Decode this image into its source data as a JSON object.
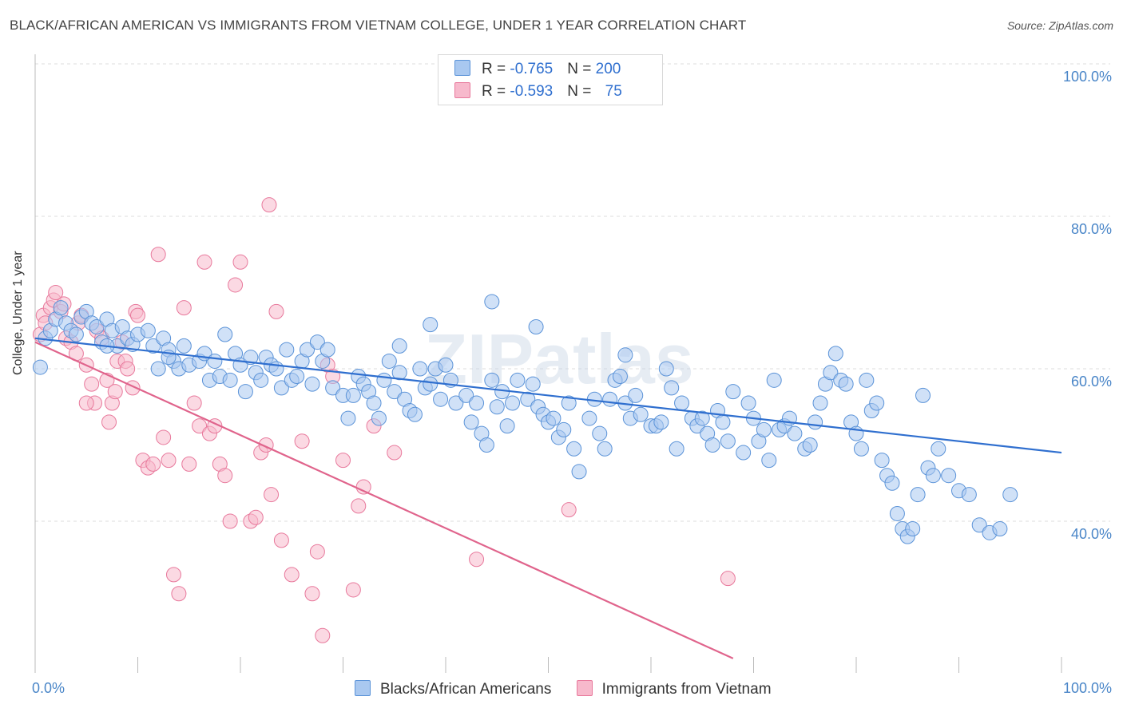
{
  "header": {
    "title": "BLACK/AFRICAN AMERICAN VS IMMIGRANTS FROM VIETNAM COLLEGE, UNDER 1 YEAR CORRELATION CHART",
    "source": "Source: ZipAtlas.com"
  },
  "watermark": "ZIPatlas",
  "legend": {
    "rows": [
      {
        "r_label": "R = ",
        "r_value": "-0.765",
        "n_label": "N = ",
        "n_value": "200"
      },
      {
        "r_label": "R = ",
        "r_value": "-0.593",
        "n_label": "N = ",
        "n_value": "75"
      }
    ],
    "bottom": [
      "Blacks/African Americans",
      "Immigrants from Vietnam"
    ]
  },
  "axes": {
    "ylabel": "College, Under 1 year",
    "yticks": [
      "100.0%",
      "80.0%",
      "60.0%",
      "40.0%"
    ],
    "xticks": [
      "0.0%",
      "100.0%"
    ]
  },
  "colors": {
    "blue_fill": "#a9c8f0",
    "blue_stroke": "#5b93d8",
    "blue_line": "#2f6fcf",
    "pink_fill": "#f7b9cc",
    "pink_stroke": "#e8799c",
    "pink_line": "#e0648c",
    "grid": "#dddddd",
    "tick_text": "#4a86c8"
  },
  "chart_data": {
    "type": "scatter",
    "title": "BLACK/AFRICAN AMERICAN VS IMMIGRANTS FROM VIETNAM COLLEGE, UNDER 1 YEAR CORRELATION CHART",
    "xlabel": "",
    "ylabel": "College, Under 1 year",
    "xlim": [
      0,
      100
    ],
    "ylim": [
      20,
      102
    ],
    "grid": true,
    "legend_placement": "top-center",
    "series": [
      {
        "name": "Blacks/African Americans",
        "r": -0.765,
        "n": 200,
        "trend": [
          [
            0,
            64.0
          ],
          [
            100,
            49.0
          ]
        ],
        "points": [
          [
            0.5,
            60.2
          ],
          [
            1,
            64
          ],
          [
            1.5,
            65
          ],
          [
            2,
            66.5
          ],
          [
            2.5,
            68
          ],
          [
            3,
            66
          ],
          [
            3.5,
            65
          ],
          [
            4,
            64.5
          ],
          [
            4.5,
            66.8
          ],
          [
            5,
            67.5
          ],
          [
            5.5,
            66
          ],
          [
            6,
            65.5
          ],
          [
            6.5,
            63.5
          ],
          [
            7,
            66.5
          ],
          [
            7.5,
            65
          ],
          [
            8,
            63
          ],
          [
            8.5,
            65.5
          ],
          [
            9,
            64
          ],
          [
            9.5,
            63.2
          ],
          [
            10,
            64.5
          ],
          [
            11,
            65
          ],
          [
            11.5,
            63
          ],
          [
            12,
            60
          ],
          [
            12.5,
            64
          ],
          [
            13,
            62.5
          ],
          [
            13.5,
            61
          ],
          [
            14,
            60
          ],
          [
            14.5,
            63
          ],
          [
            15,
            60.5
          ],
          [
            16,
            61
          ],
          [
            16.5,
            62
          ],
          [
            17,
            58.5
          ],
          [
            17.5,
            61
          ],
          [
            18,
            59
          ],
          [
            18.5,
            64.5
          ],
          [
            19,
            58.5
          ],
          [
            19.5,
            62
          ],
          [
            20,
            60.5
          ],
          [
            20.5,
            57
          ],
          [
            21,
            61.5
          ],
          [
            21.5,
            59.5
          ],
          [
            22,
            58.5
          ],
          [
            22.5,
            61.5
          ],
          [
            23,
            60.5
          ],
          [
            23.5,
            60
          ],
          [
            24,
            57.5
          ],
          [
            24.5,
            62.5
          ],
          [
            25,
            58.5
          ],
          [
            25.5,
            59
          ],
          [
            26,
            61
          ],
          [
            26.5,
            62.5
          ],
          [
            27,
            58
          ],
          [
            27.5,
            63.5
          ],
          [
            28,
            61
          ],
          [
            28.5,
            62.5
          ],
          [
            29,
            57.5
          ],
          [
            30,
            56.5
          ],
          [
            30.5,
            53.5
          ],
          [
            31,
            56.5
          ],
          [
            31.5,
            59
          ],
          [
            32,
            58
          ],
          [
            32.5,
            57
          ],
          [
            33,
            55.5
          ],
          [
            34,
            58.5
          ],
          [
            34.5,
            61
          ],
          [
            35,
            57
          ],
          [
            35.5,
            59.5
          ],
          [
            36,
            56
          ],
          [
            36.5,
            54.5
          ],
          [
            37,
            54
          ],
          [
            37.5,
            60
          ],
          [
            38,
            57.5
          ],
          [
            38.5,
            58
          ],
          [
            39,
            60
          ],
          [
            39.5,
            56
          ],
          [
            40,
            60.5
          ],
          [
            40.5,
            58.5
          ],
          [
            41,
            55.5
          ],
          [
            42,
            56.5
          ],
          [
            42.5,
            53
          ],
          [
            43,
            55.5
          ],
          [
            43.5,
            51.5
          ],
          [
            44,
            50
          ],
          [
            44.5,
            58.5
          ],
          [
            45,
            55
          ],
          [
            45.5,
            57
          ],
          [
            46,
            52.5
          ],
          [
            46.5,
            55.5
          ],
          [
            47,
            58.5
          ],
          [
            48,
            56
          ],
          [
            48.5,
            58
          ],
          [
            49,
            55
          ],
          [
            49.5,
            54
          ],
          [
            50,
            53
          ],
          [
            50.5,
            53.5
          ],
          [
            51,
            51
          ],
          [
            51.5,
            52
          ],
          [
            52,
            55.5
          ],
          [
            52.5,
            49.5
          ],
          [
            53,
            46.5
          ],
          [
            54,
            53.5
          ],
          [
            54.5,
            56
          ],
          [
            55,
            51.5
          ],
          [
            55.5,
            49.5
          ],
          [
            56,
            56
          ],
          [
            56.5,
            58.5
          ],
          [
            57,
            59
          ],
          [
            57.5,
            55.5
          ],
          [
            58,
            53.5
          ],
          [
            58.5,
            56.5
          ],
          [
            59,
            54
          ],
          [
            60,
            52.5
          ],
          [
            60.5,
            52.5
          ],
          [
            61,
            53
          ],
          [
            61.5,
            60
          ],
          [
            62,
            57.5
          ],
          [
            62.5,
            49.5
          ],
          [
            63,
            55.5
          ],
          [
            64,
            53.5
          ],
          [
            64.5,
            52.5
          ],
          [
            65,
            53.5
          ],
          [
            65.5,
            51.5
          ],
          [
            66,
            50
          ],
          [
            66.5,
            54.5
          ],
          [
            67,
            53
          ],
          [
            67.5,
            50.5
          ],
          [
            68,
            57
          ],
          [
            69,
            49
          ],
          [
            69.5,
            55.5
          ],
          [
            70,
            53.5
          ],
          [
            70.5,
            50.5
          ],
          [
            71,
            52
          ],
          [
            71.5,
            48
          ],
          [
            72,
            58.5
          ],
          [
            72.5,
            52
          ],
          [
            73,
            52.5
          ],
          [
            73.5,
            53.5
          ],
          [
            74,
            51.5
          ],
          [
            75,
            49.5
          ],
          [
            75.5,
            50
          ],
          [
            76,
            53
          ],
          [
            76.5,
            55.5
          ],
          [
            77,
            58
          ],
          [
            77.5,
            59.5
          ],
          [
            78,
            62
          ],
          [
            78.5,
            58.5
          ],
          [
            79,
            58
          ],
          [
            79.5,
            53
          ],
          [
            80,
            51.5
          ],
          [
            80.5,
            49.5
          ],
          [
            81,
            58.5
          ],
          [
            81.5,
            54.5
          ],
          [
            82,
            55.5
          ],
          [
            82.5,
            48
          ],
          [
            83,
            46
          ],
          [
            83.5,
            45
          ],
          [
            84,
            41
          ],
          [
            84.5,
            39
          ],
          [
            85,
            38
          ],
          [
            85.5,
            39
          ],
          [
            86,
            43.5
          ],
          [
            86.5,
            56.5
          ],
          [
            87,
            47
          ],
          [
            87.5,
            46
          ],
          [
            88,
            49.5
          ],
          [
            89,
            46
          ],
          [
            90,
            44
          ],
          [
            91,
            43.5
          ],
          [
            92,
            39.5
          ],
          [
            93,
            38.5
          ],
          [
            94,
            39
          ],
          [
            95,
            43.5
          ],
          [
            48.8,
            65.5
          ],
          [
            44.5,
            68.8
          ],
          [
            57.5,
            61.8
          ],
          [
            38.5,
            65.8
          ],
          [
            33.5,
            53.5
          ],
          [
            13,
            61.5
          ],
          [
            7,
            63
          ],
          [
            35.5,
            63
          ]
        ]
      },
      {
        "name": "Immigrants from Vietnam",
        "r": -0.593,
        "n": 75,
        "trend": [
          [
            0,
            63.5
          ],
          [
            68,
            22.0
          ]
        ],
        "points": [
          [
            0.5,
            64.5
          ],
          [
            0.8,
            67
          ],
          [
            1,
            66
          ],
          [
            1.5,
            68
          ],
          [
            1.8,
            69
          ],
          [
            2,
            70
          ],
          [
            2.5,
            67.5
          ],
          [
            2.8,
            68.5
          ],
          [
            3,
            64
          ],
          [
            3.5,
            63.5
          ],
          [
            4,
            62
          ],
          [
            4.2,
            66
          ],
          [
            4.5,
            67
          ],
          [
            5,
            60.5
          ],
          [
            5.5,
            58
          ],
          [
            5.8,
            55.5
          ],
          [
            6,
            65
          ],
          [
            6.5,
            64
          ],
          [
            7,
            58.5
          ],
          [
            7.2,
            53
          ],
          [
            7.5,
            55.5
          ],
          [
            7.8,
            57
          ],
          [
            8,
            61
          ],
          [
            8.5,
            63.5
          ],
          [
            8.8,
            61
          ],
          [
            9,
            60
          ],
          [
            9.5,
            57.5
          ],
          [
            9.8,
            67.5
          ],
          [
            10,
            67
          ],
          [
            10.5,
            48
          ],
          [
            11,
            47
          ],
          [
            11.5,
            47.5
          ],
          [
            12,
            75
          ],
          [
            12.5,
            51
          ],
          [
            13,
            48
          ],
          [
            13.5,
            33
          ],
          [
            14,
            30.5
          ],
          [
            14.5,
            68
          ],
          [
            15,
            47.5
          ],
          [
            15.5,
            55.5
          ],
          [
            16,
            52.5
          ],
          [
            16.5,
            74
          ],
          [
            17,
            51.5
          ],
          [
            17.5,
            52.5
          ],
          [
            18,
            47.5
          ],
          [
            18.5,
            46
          ],
          [
            19,
            40
          ],
          [
            19.5,
            71
          ],
          [
            20,
            74
          ],
          [
            21,
            40
          ],
          [
            21.5,
            40.5
          ],
          [
            22,
            49
          ],
          [
            22.5,
            50
          ],
          [
            22.8,
            81.5
          ],
          [
            23,
            43.5
          ],
          [
            23.5,
            67.5
          ],
          [
            24,
            37.5
          ],
          [
            25,
            33
          ],
          [
            26,
            50.5
          ],
          [
            27,
            30.5
          ],
          [
            27.5,
            36
          ],
          [
            28,
            25
          ],
          [
            28.5,
            60.5
          ],
          [
            29,
            59
          ],
          [
            30,
            48
          ],
          [
            31,
            31
          ],
          [
            31.5,
            42
          ],
          [
            32,
            44.5
          ],
          [
            33,
            52.5
          ],
          [
            35,
            49
          ],
          [
            43,
            35
          ],
          [
            52,
            41.5
          ],
          [
            67.5,
            32.5
          ],
          [
            5,
            55.5
          ]
        ]
      }
    ]
  }
}
